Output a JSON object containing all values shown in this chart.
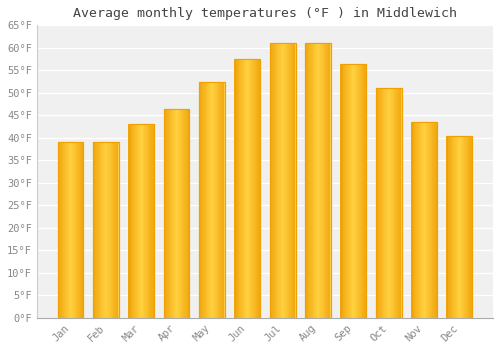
{
  "months": [
    "Jan",
    "Feb",
    "Mar",
    "Apr",
    "May",
    "Jun",
    "Jul",
    "Aug",
    "Sep",
    "Oct",
    "Nov",
    "Dec"
  ],
  "values": [
    39,
    39,
    43,
    46.5,
    52.5,
    57.5,
    61,
    61,
    56.5,
    51,
    43.5,
    40.5
  ],
  "bar_color_center": "#FFD050",
  "bar_color_edge": "#F0A000",
  "title": "Average monthly temperatures (°F ) in Middlewich",
  "ylim": [
    0,
    65
  ],
  "yticks": [
    0,
    5,
    10,
    15,
    20,
    25,
    30,
    35,
    40,
    45,
    50,
    55,
    60,
    65
  ],
  "ytick_labels": [
    "0°F",
    "5°F",
    "10°F",
    "15°F",
    "20°F",
    "25°F",
    "30°F",
    "35°F",
    "40°F",
    "45°F",
    "50°F",
    "55°F",
    "60°F",
    "65°F"
  ],
  "title_fontsize": 9.5,
  "tick_fontsize": 7.5,
  "background_color": "#ffffff",
  "plot_bg_color": "#f0f0f0",
  "grid_color": "#ffffff",
  "bar_width": 0.72,
  "font_family": "monospace",
  "tick_color": "#888888",
  "title_color": "#444444"
}
